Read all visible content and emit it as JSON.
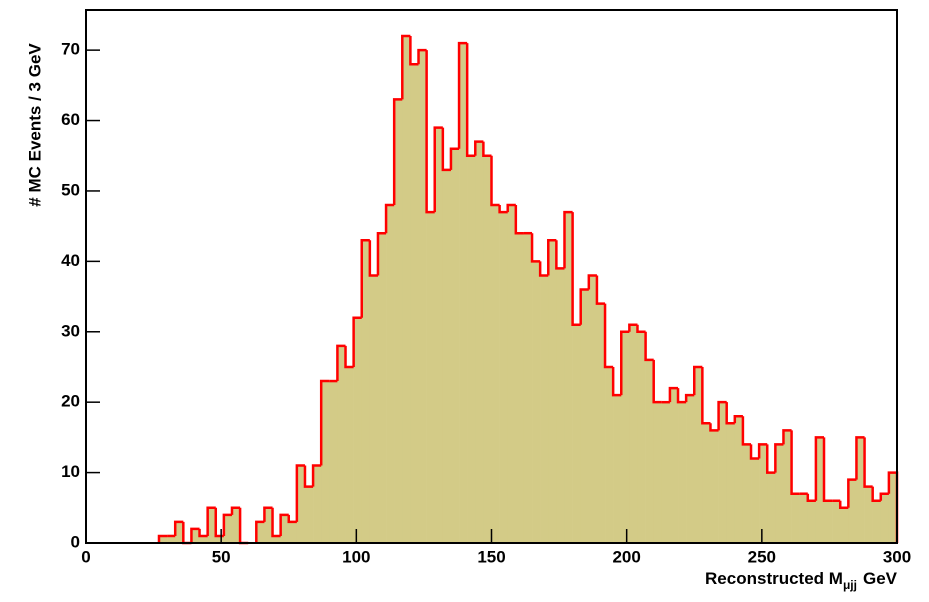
{
  "chart_data": {
    "type": "histogram",
    "ylabel": "# MC Events / 3 GeV",
    "xlabel": "Reconstructed M",
    "xlabel_sub": "μjj",
    "xlabel_unit": "GeV",
    "bins": [
      0,
      3,
      6,
      9,
      12,
      15,
      18,
      21,
      24,
      27,
      30,
      33,
      36,
      39,
      42,
      45,
      48,
      51,
      54,
      57,
      60,
      63,
      66,
      69,
      72,
      75,
      78,
      81,
      84,
      87,
      90,
      93,
      96,
      99,
      102,
      105,
      108,
      111,
      114,
      117,
      120,
      123,
      126,
      129,
      132,
      135,
      138,
      141,
      144,
      147,
      150,
      153,
      156,
      159,
      162,
      165,
      168,
      171,
      174,
      177,
      180,
      183,
      186,
      189,
      192,
      195,
      198,
      201,
      204,
      207,
      210,
      213,
      216,
      219,
      222,
      225,
      228,
      231,
      234,
      237,
      240,
      243,
      246,
      249,
      252,
      255,
      258,
      261,
      264,
      267,
      270,
      273,
      276,
      279,
      282,
      285,
      288,
      291,
      294,
      297,
      300
    ],
    "values": [
      0,
      0,
      0,
      0,
      0,
      0,
      0,
      0,
      0,
      1,
      1,
      3,
      0,
      2,
      1,
      5,
      1,
      4,
      5,
      0,
      0,
      3,
      5,
      1,
      4,
      3,
      11,
      8,
      11,
      23,
      23,
      28,
      25,
      32,
      43,
      38,
      44,
      48,
      63,
      72,
      68,
      70,
      47,
      59,
      53,
      56,
      71,
      55,
      57,
      55,
      48,
      47,
      48,
      44,
      44,
      40,
      38,
      43,
      39,
      47,
      31,
      36,
      38,
      34,
      25,
      21,
      30,
      31,
      30,
      26,
      20,
      20,
      22,
      20,
      21,
      25,
      17,
      16,
      20,
      17,
      18,
      14,
      12,
      14,
      10,
      14,
      16,
      7,
      7,
      6,
      15,
      6,
      6,
      5,
      9,
      15,
      8,
      6,
      7,
      10
    ],
    "fill_color": "#d3cb87",
    "line_color": "#ff0000",
    "xlim": [
      0,
      300
    ],
    "ylim": [
      0,
      75.7
    ],
    "xticks": [
      0,
      50,
      100,
      150,
      200,
      250,
      300
    ],
    "yticks": [
      0,
      10,
      20,
      30,
      40,
      50,
      60,
      70
    ]
  }
}
